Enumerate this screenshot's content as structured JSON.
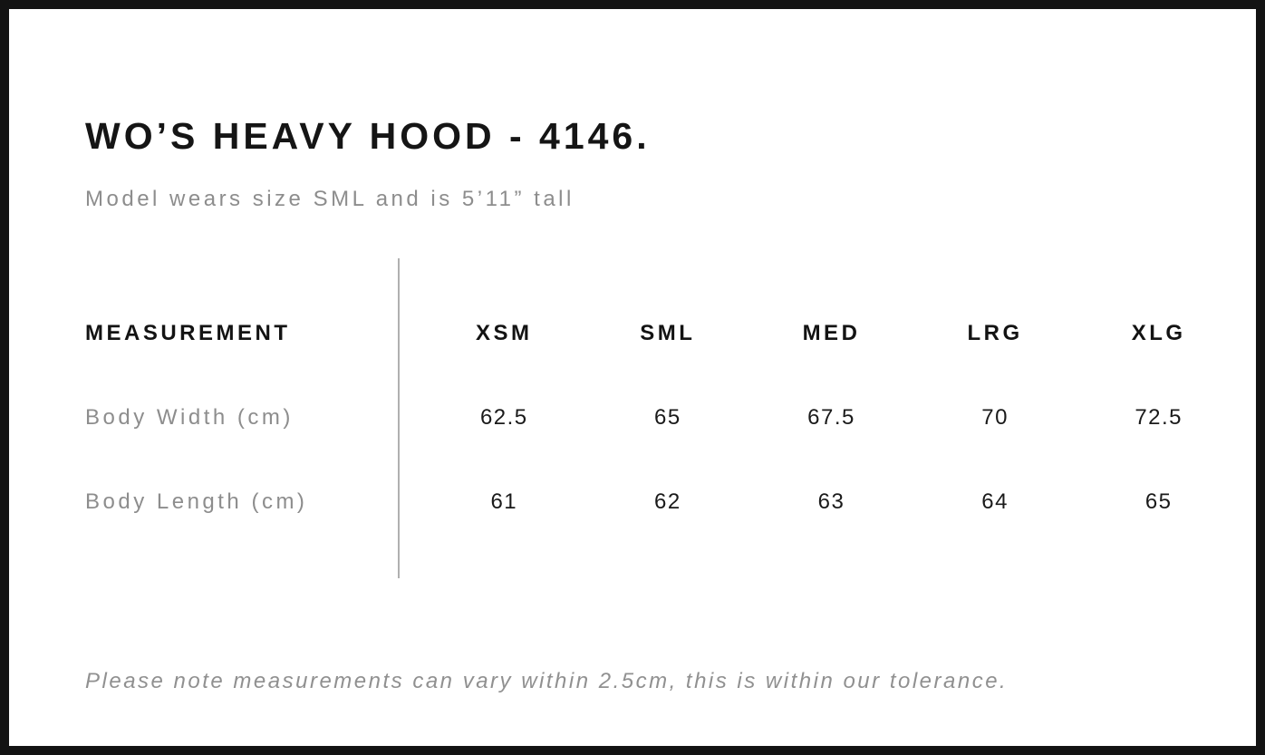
{
  "header": {
    "title": "WO’S HEAVY HOOD - 4146.",
    "subtitle": "Model wears size SML and is 5’11” tall"
  },
  "table": {
    "measurement_header": "MEASUREMENT",
    "sizes": [
      "XSM",
      "SML",
      "MED",
      "LRG",
      "XLG"
    ],
    "rows": [
      {
        "label": "Body Width (cm)",
        "values": [
          "62.5",
          "65",
          "67.5",
          "70",
          "72.5"
        ]
      },
      {
        "label": "Body Length (cm)",
        "values": [
          "61",
          "62",
          "63",
          "64",
          "65"
        ]
      }
    ]
  },
  "footer": {
    "note": "Please note measurements can vary within 2.5cm, this is within our tolerance."
  },
  "colors": {
    "text_primary": "#151515",
    "text_muted": "#8d8d8d",
    "divider": "#b0b0b0",
    "frame_border": "#131313",
    "background": "#ffffff"
  },
  "chart_data": {
    "type": "table",
    "title": "WO’S HEAVY HOOD - 4146.",
    "subtitle": "Model wears size SML and is 5’11” tall",
    "columns": [
      "MEASUREMENT",
      "XSM",
      "SML",
      "MED",
      "LRG",
      "XLG"
    ],
    "categories": [
      "XSM",
      "SML",
      "MED",
      "LRG",
      "XLG"
    ],
    "series": [
      {
        "name": "Body Width (cm)",
        "values": [
          62.5,
          65,
          67.5,
          70,
          72.5
        ]
      },
      {
        "name": "Body Length (cm)",
        "values": [
          61,
          62,
          63,
          64,
          65
        ]
      }
    ],
    "annotations": [
      "Please note measurements can vary within 2.5cm, this is within our tolerance."
    ]
  }
}
